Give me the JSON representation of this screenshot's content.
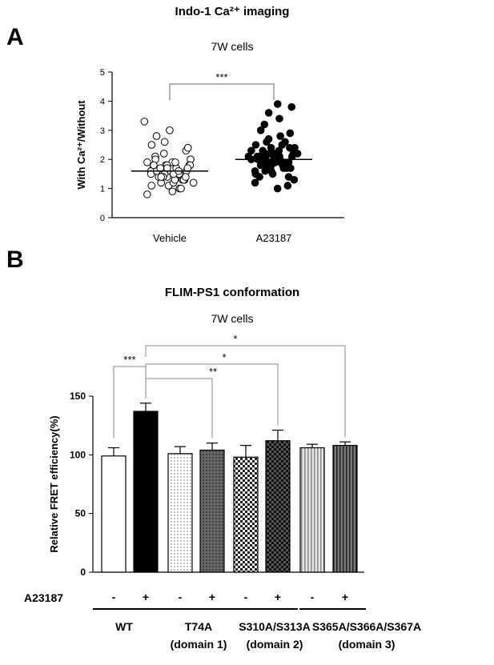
{
  "panel_a": {
    "letter": "A",
    "title": "Indo-1 Ca²⁺ imaging",
    "subtitle": "7W cells"
  },
  "panel_b": {
    "letter": "B",
    "title": "FLIM-PS1 conformation",
    "subtitle": "7W cells"
  },
  "chart_data": [
    {
      "type": "scatter",
      "title": "Indo-1 Ca²⁺ imaging",
      "subtitle": "7W cells",
      "ylabel": "With Ca²⁺/Without",
      "ylim": [
        0,
        5
      ],
      "yticks": [
        0,
        1,
        2,
        3,
        4,
        5
      ],
      "categories": [
        "Vehicle",
        "A23187"
      ],
      "marker_style": [
        "open-circle",
        "filled-circle"
      ],
      "means": [
        1.6,
        2.0
      ],
      "points_approx": [
        [
          1.6,
          1.5,
          1.7,
          1.4,
          1.8,
          1.6,
          1.3,
          1.9,
          1.5,
          1.7,
          1.2,
          2.0,
          1.6,
          1.4,
          1.8,
          1.1,
          1.5,
          1.7,
          2.1,
          1.3,
          1.6,
          1.9,
          1.0,
          1.4,
          1.8,
          1.5,
          2.2,
          1.2,
          1.6,
          1.7,
          0.9,
          1.5,
          2.3,
          1.4,
          1.8,
          1.3,
          1.6,
          2.4,
          1.1,
          1.7,
          1.5,
          2.5,
          1.2,
          1.9,
          0.8,
          1.6,
          2.6,
          1.4,
          1.7,
          2.0,
          1.3,
          1.5,
          2.8,
          1.0,
          1.8,
          3.0,
          1.6,
          3.3,
          1.4,
          1.7
        ],
        [
          2.0,
          1.9,
          2.1,
          1.8,
          2.2,
          2.0,
          1.7,
          2.3,
          1.9,
          2.1,
          1.6,
          2.4,
          2.0,
          1.8,
          2.2,
          1.5,
          2.5,
          1.9,
          2.1,
          1.4,
          2.6,
          2.0,
          1.7,
          2.3,
          1.3,
          2.7,
          1.9,
          2.2,
          1.2,
          2.8,
          2.0,
          1.6,
          2.9,
          1.8,
          2.4,
          1.1,
          3.0,
          2.1,
          1.5,
          3.2,
          1.9,
          2.5,
          1.0,
          3.4,
          2.0,
          1.7,
          3.6,
          2.2,
          3.8,
          1.4,
          2.3,
          3.9,
          1.8,
          2.6,
          2.0,
          2.2,
          1.9,
          2.1,
          2.4,
          1.6
        ]
      ],
      "significance": [
        {
          "from": "Vehicle",
          "to": "A23187",
          "label": "***"
        }
      ]
    },
    {
      "type": "bar",
      "title": "FLIM-PS1 conformation",
      "subtitle": "7W cells",
      "ylabel": "Relative FRET efficiency(%)",
      "ylim": [
        0,
        150
      ],
      "yticks": [
        0,
        50,
        100,
        150
      ],
      "row_label": "A23187",
      "treatment": [
        "-",
        "+",
        "-",
        "+",
        "-",
        "+",
        "-",
        "+"
      ],
      "values": [
        99,
        137,
        101,
        104,
        98,
        112,
        106,
        108
      ],
      "errors": [
        7,
        7,
        6,
        6,
        10,
        9,
        3,
        3
      ],
      "fills": [
        "white",
        "black",
        "light-dots",
        "dark-dots",
        "checker",
        "dark-checker",
        "light-vstripes",
        "dark-vstripes"
      ],
      "groups": [
        {
          "label": "WT",
          "sublabel": ""
        },
        {
          "label": "T74A",
          "sublabel": "(domain 1)"
        },
        {
          "label": "S310A/S313A",
          "sublabel": "(domain 2)"
        },
        {
          "label": "S365A/S366A/S367A",
          "sublabel": "(domain 3)"
        }
      ],
      "significance": [
        {
          "from_bar": 0,
          "to_bar": 1,
          "label": "***"
        },
        {
          "from_bar": 1,
          "to_bar": 3,
          "label": "**"
        },
        {
          "from_bar": 1,
          "to_bar": 5,
          "label": "*"
        },
        {
          "from_bar": 1,
          "to_bar": 7,
          "label": "*"
        }
      ]
    }
  ]
}
